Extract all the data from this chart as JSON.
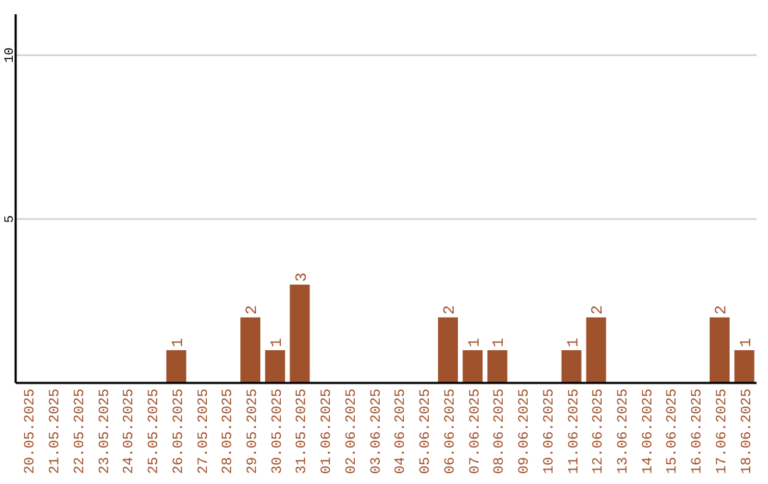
{
  "chart_data": {
    "type": "bar",
    "categories": [
      "20.05.2025",
      "21.05.2025",
      "22.05.2025",
      "23.05.2025",
      "24.05.2025",
      "25.05.2025",
      "26.05.2025",
      "27.05.2025",
      "28.05.2025",
      "29.05.2025",
      "30.05.2025",
      "31.05.2025",
      "01.06.2025",
      "02.06.2025",
      "03.06.2025",
      "04.06.2025",
      "05.06.2025",
      "06.06.2025",
      "07.06.2025",
      "08.06.2025",
      "09.06.2025",
      "10.06.2025",
      "11.06.2025",
      "12.06.2025",
      "13.06.2025",
      "14.06.2025",
      "15.06.2025",
      "16.06.2025",
      "17.06.2025",
      "18.06.2025"
    ],
    "values": [
      0,
      0,
      0,
      0,
      0,
      0,
      1,
      0,
      0,
      2,
      1,
      3,
      0,
      0,
      0,
      0,
      0,
      2,
      1,
      1,
      0,
      0,
      1,
      2,
      0,
      0,
      0,
      0,
      2,
      1
    ],
    "value_labels": [
      null,
      null,
      null,
      null,
      null,
      null,
      "1",
      null,
      null,
      "2",
      "1",
      "3",
      null,
      null,
      null,
      null,
      null,
      "2",
      "1",
      "1",
      null,
      null,
      "1",
      "2",
      null,
      null,
      null,
      null,
      "2",
      "1"
    ],
    "color": "#a0522d",
    "ylim": [
      0,
      11.25
    ],
    "yticks": [
      5,
      10
    ],
    "grid": "y"
  }
}
